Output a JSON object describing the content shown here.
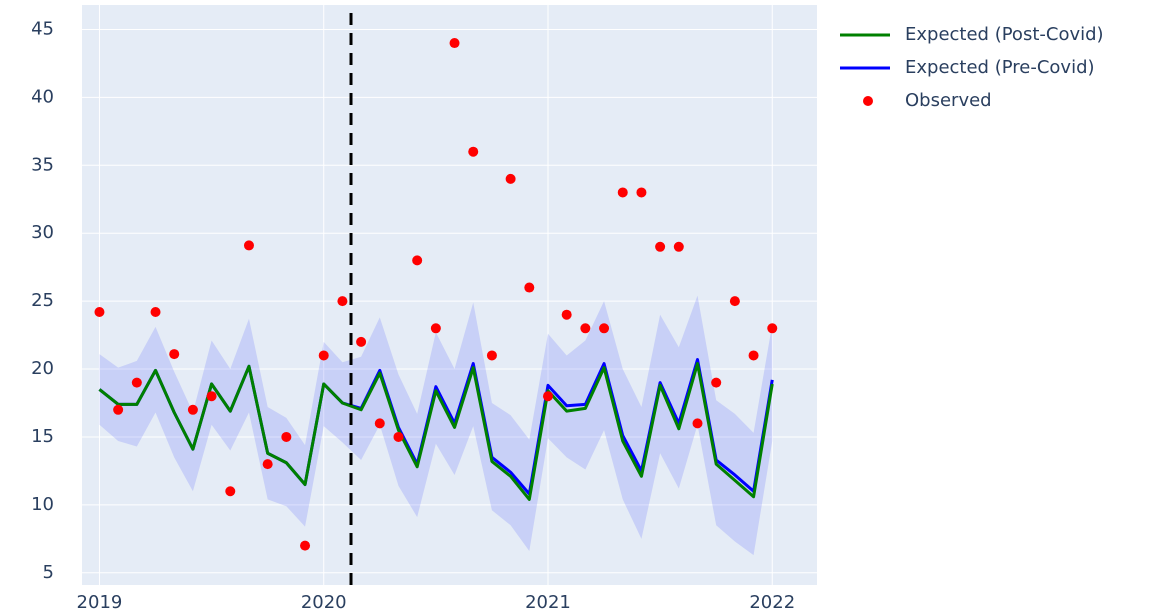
{
  "chart_data": {
    "type": "line",
    "x": [
      "2019-01",
      "2019-02",
      "2019-03",
      "2019-04",
      "2019-05",
      "2019-06",
      "2019-07",
      "2019-08",
      "2019-09",
      "2019-10",
      "2019-11",
      "2019-12",
      "2020-01",
      "2020-02",
      "2020-03",
      "2020-04",
      "2020-05",
      "2020-06",
      "2020-07",
      "2020-08",
      "2020-09",
      "2020-10",
      "2020-11",
      "2020-12",
      "2021-01",
      "2021-02",
      "2021-03",
      "2021-04",
      "2021-05",
      "2021-06",
      "2021-07",
      "2021-08",
      "2021-09",
      "2021-10",
      "2021-11",
      "2021-12",
      "2022-01"
    ],
    "band": {
      "color": "rgba(99,110,250,0.22)",
      "upper": [
        21.1,
        20.1,
        20.6,
        23.1,
        19.8,
        16.8,
        22.1,
        20.0,
        23.7,
        17.2,
        16.4,
        14.4,
        22.0,
        20.5,
        20.9,
        23.8,
        19.6,
        16.7,
        22.7,
        20.0,
        24.9,
        17.5,
        16.6,
        14.8,
        22.6,
        21.0,
        22.1,
        25.0,
        20.0,
        17.2,
        24.0,
        21.6,
        25.4,
        17.7,
        16.7,
        15.3,
        23.3
      ],
      "lower": [
        15.9,
        14.7,
        14.3,
        16.8,
        13.5,
        11.0,
        15.9,
        14.0,
        16.8,
        10.4,
        9.9,
        8.4,
        15.8,
        14.6,
        13.3,
        15.9,
        11.4,
        9.1,
        14.5,
        12.2,
        15.8,
        9.6,
        8.5,
        6.6,
        14.9,
        13.5,
        12.6,
        15.5,
        10.4,
        7.5,
        13.8,
        11.2,
        15.9,
        8.5,
        7.3,
        6.3,
        14.7
      ]
    },
    "series": [
      {
        "name": "Expected (Post-Covid)",
        "color": "#008000",
        "mode": "lines",
        "values": [
          18.5,
          17.4,
          17.4,
          19.9,
          16.8,
          14.1,
          18.9,
          16.9,
          20.2,
          13.8,
          13.1,
          11.5,
          18.9,
          17.5,
          17.0,
          19.7,
          15.5,
          12.8,
          18.4,
          15.7,
          20.1,
          13.2,
          12.1,
          10.4,
          18.4,
          16.9,
          17.1,
          20.1,
          14.7,
          12.1,
          18.8,
          15.6,
          20.4,
          13.0,
          11.8,
          10.6,
          18.9
        ]
      },
      {
        "name": "Expected (Pre-Covid)",
        "color": "#0000ff",
        "mode": "lines",
        "values": [
          18.5,
          17.4,
          17.4,
          19.9,
          16.8,
          14.1,
          18.9,
          16.9,
          20.2,
          13.8,
          13.1,
          11.5,
          18.9,
          17.5,
          17.1,
          19.9,
          15.7,
          13.0,
          18.7,
          16.0,
          20.4,
          13.5,
          12.4,
          10.8,
          18.8,
          17.3,
          17.4,
          20.4,
          15.1,
          12.5,
          19.0,
          16.0,
          20.7,
          13.3,
          12.2,
          11.0,
          19.2
        ]
      },
      {
        "name": "Observed",
        "color": "#ff0000",
        "mode": "markers",
        "values": [
          24.2,
          17,
          19,
          24.2,
          21.1,
          17,
          18,
          11,
          29.1,
          13,
          15,
          7,
          21,
          25,
          22,
          16,
          15,
          28,
          23,
          44,
          36,
          21,
          34,
          26,
          18,
          24,
          23,
          23,
          33,
          33,
          29,
          29,
          16,
          19,
          25,
          21,
          23
        ]
      }
    ],
    "vline": "2020-02-15",
    "xlim": [
      "2018-12-03",
      "2022-03-13"
    ],
    "xticks": [
      {
        "value": "2019-01",
        "label": "2019"
      },
      {
        "value": "2020-01",
        "label": "2020"
      },
      {
        "value": "2021-01",
        "label": "2021"
      },
      {
        "value": "2022-01",
        "label": "2022"
      }
    ],
    "ylim": [
      4.1,
      46.8
    ],
    "yticks": [
      5,
      10,
      15,
      20,
      25,
      30,
      35,
      40,
      45
    ],
    "grid": true
  }
}
